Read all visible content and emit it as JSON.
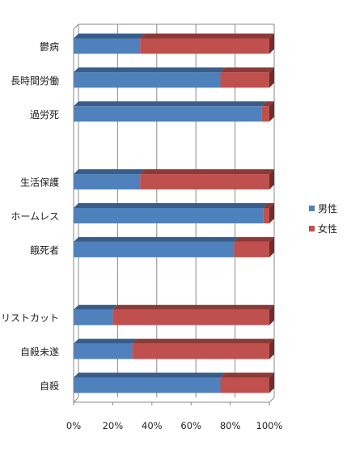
{
  "chart_data": {
    "type": "bar",
    "orientation": "horizontal",
    "stacked": "percent",
    "three_d": true,
    "categories": [
      "鬱病",
      "長時間労働",
      "過労死",
      "",
      "生活保護",
      "ホームレス",
      "餓死者",
      "",
      "リストカット",
      "自殺未遂",
      "自殺"
    ],
    "series": [
      {
        "name": "男性",
        "color": "#4f81bd",
        "values": [
          34,
          75,
          96,
          null,
          34,
          97,
          82,
          null,
          20,
          30,
          75
        ]
      },
      {
        "name": "女性",
        "color": "#c0504d",
        "values": [
          66,
          25,
          4,
          null,
          66,
          3,
          18,
          null,
          80,
          70,
          25
        ]
      }
    ],
    "x_ticks": [
      "0%",
      "20%",
      "40%",
      "60%",
      "80%",
      "100%"
    ],
    "xlim": [
      0,
      100
    ],
    "title": "",
    "xlabel": "",
    "ylabel": "",
    "grid": true,
    "legend_position": "right"
  }
}
